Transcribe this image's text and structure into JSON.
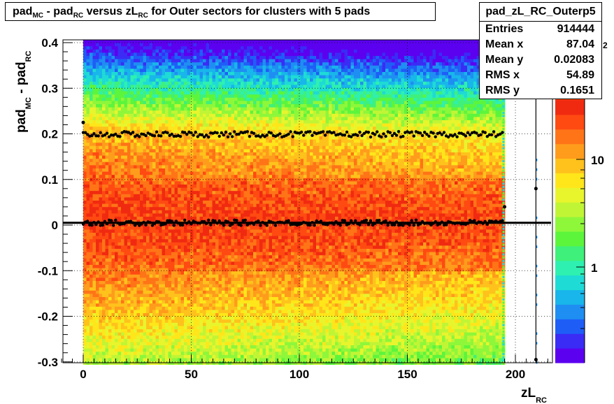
{
  "title": {
    "parts": [
      {
        "t": "pad"
      },
      {
        "sub": "MC"
      },
      {
        "t": " - pad"
      },
      {
        "sub": "RC"
      },
      {
        "t": " versus zL"
      },
      {
        "sub": "RC"
      },
      {
        "t": " for Outer sectors for clusters with 5 pads"
      }
    ]
  },
  "stats": {
    "name": "pad_zL_RC_Outerp5",
    "rows": [
      {
        "label": "Entries",
        "value": "914444"
      },
      {
        "label": "Mean x",
        "value": "87.04"
      },
      {
        "label": "Mean y",
        "value": "0.02083"
      },
      {
        "label": "RMS x",
        "value": "54.89"
      },
      {
        "label": "RMS y",
        "value": "0.1651"
      }
    ]
  },
  "chart_data": {
    "type": "heatmap",
    "x_range": [
      -10,
      220
    ],
    "y_range": [
      -0.305,
      0.405
    ],
    "x_ticks": [
      "0",
      "50",
      "100",
      "150",
      "200"
    ],
    "y_ticks": [
      "-0.3",
      "-0.2",
      "-0.1",
      "0",
      "0.1",
      "0.2",
      "0.3",
      "0.4"
    ],
    "xlabel": {
      "main": "zL",
      "sub": "RC"
    },
    "ylabel": {
      "main1": "pad",
      "sub1": "MC",
      "main2": " - pad",
      "sub2": "RC"
    },
    "z_scale": "log",
    "colorbar_ticks": [
      "1",
      "10"
    ],
    "colorbar_exponent": "2",
    "profile_series": [
      {
        "name": "mean",
        "x_start": 0,
        "x_end": 194,
        "y": 0.005
      },
      {
        "name": "upper",
        "x_start": 0,
        "x_end": 194,
        "y": 0.199
      }
    ],
    "horizontal_line_y": 0.005,
    "grid": true
  }
}
